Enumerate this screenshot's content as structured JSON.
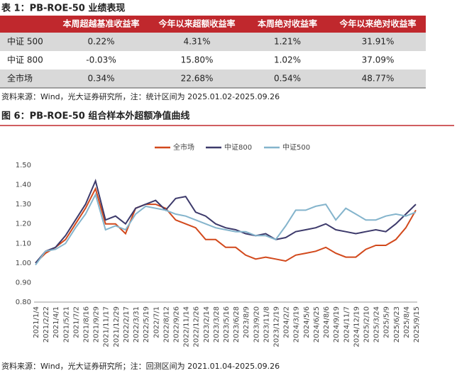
{
  "table_title": "表 1：PB-ROE-50 业绩表现",
  "table": {
    "header": [
      "本周超越基准收益率",
      "今年以来超额收益率",
      "本周绝对收益率",
      "今年以来绝对收益率"
    ],
    "rows": [
      [
        "中证 500",
        "0.22%",
        "4.31%",
        "1.21%",
        "31.91%"
      ],
      [
        "中证 800",
        "-0.03%",
        "15.80%",
        "1.02%",
        "37.09%"
      ],
      [
        "全市场",
        "0.34%",
        "22.68%",
        "0.54%",
        "48.77%"
      ]
    ]
  },
  "table_note": "资料来源：Wind，光大证券研究所，注：统计区间为 2025.01.02-2025.09.26",
  "chart_data": {
    "type": "line",
    "title": "图 6：PB-ROE-50 组合样本外超额净值曲线",
    "categories": [
      "2021/1/4",
      "2021/2/22",
      "2021/4/1",
      "2021/5/21",
      "2021/7/2",
      "2021/8/16",
      "2021/9/29",
      "2021/11/17",
      "2021/12/29",
      "2022/2/17",
      "2022/3/31",
      "2022/5/19",
      "2022/7/1",
      "2022/8/12",
      "2022/9/26",
      "2022/11/14",
      "2022/12/26",
      "2023/2/14",
      "2023/3/28",
      "2023/5/16",
      "2023/6/28",
      "2023/8/9",
      "2023/9/20",
      "2023/11/8",
      "2023/12/19",
      "2024/2/2",
      "2024/3/19",
      "2024/5/6",
      "2024/6/25",
      "2024/8/6",
      "2024/9/19",
      "2024/11/7",
      "2024/12/19",
      "2025/2/10",
      "2025/3/24",
      "2025/5/9",
      "2025/6/23",
      "2025/8/4",
      "2025/9/15"
    ],
    "series": [
      {
        "name": "全市场",
        "color": "#d2491c",
        "values": [
          1.0,
          1.05,
          1.08,
          1.12,
          1.2,
          1.28,
          1.38,
          1.2,
          1.2,
          1.15,
          1.28,
          1.3,
          1.3,
          1.28,
          1.22,
          1.2,
          1.18,
          1.12,
          1.12,
          1.08,
          1.08,
          1.04,
          1.02,
          1.03,
          1.02,
          1.01,
          1.04,
          1.05,
          1.06,
          1.08,
          1.05,
          1.03,
          1.03,
          1.07,
          1.09,
          1.09,
          1.12,
          1.18,
          1.27
        ]
      },
      {
        "name": "中证800",
        "color": "#3d3a6b",
        "values": [
          1.0,
          1.06,
          1.08,
          1.14,
          1.22,
          1.3,
          1.42,
          1.22,
          1.24,
          1.2,
          1.28,
          1.3,
          1.32,
          1.27,
          1.33,
          1.34,
          1.26,
          1.24,
          1.2,
          1.18,
          1.17,
          1.15,
          1.14,
          1.15,
          1.12,
          1.13,
          1.16,
          1.17,
          1.18,
          1.2,
          1.17,
          1.16,
          1.15,
          1.16,
          1.17,
          1.16,
          1.2,
          1.25,
          1.3
        ]
      },
      {
        "name": "中证500",
        "color": "#84b4cc",
        "values": [
          0.99,
          1.06,
          1.07,
          1.1,
          1.18,
          1.25,
          1.35,
          1.17,
          1.19,
          1.17,
          1.25,
          1.29,
          1.28,
          1.27,
          1.25,
          1.24,
          1.22,
          1.2,
          1.18,
          1.17,
          1.16,
          1.16,
          1.14,
          1.14,
          1.12,
          1.19,
          1.27,
          1.27,
          1.29,
          1.3,
          1.22,
          1.28,
          1.25,
          1.22,
          1.22,
          1.24,
          1.25,
          1.24,
          1.26
        ]
      }
    ],
    "ylim": [
      0.8,
      1.5
    ],
    "yticks": [
      {
        "value": 0.8,
        "label": "0.80"
      },
      {
        "value": 0.9,
        "label": "0.90"
      },
      {
        "value": 1.0,
        "label": "1.00"
      },
      {
        "value": 1.1,
        "label": "1.10"
      },
      {
        "value": 1.2,
        "label": "1.20"
      },
      {
        "value": 1.3,
        "label": "1.30"
      },
      {
        "value": 1.4,
        "label": "1.40"
      },
      {
        "value": 1.5,
        "label": "1.50"
      }
    ],
    "grid": false,
    "legend": "top"
  },
  "chart_note": "资料来源：Wind，光大证券研究所；注：回测区间为 2021.01.04-2025.09.26"
}
